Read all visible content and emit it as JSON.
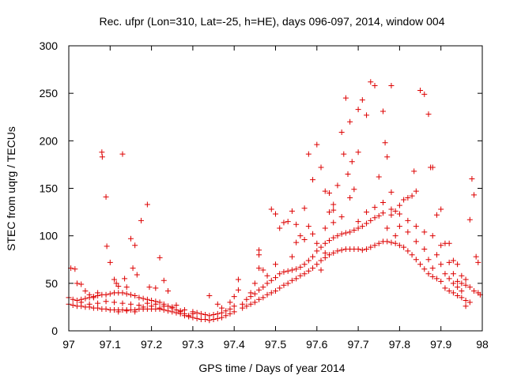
{
  "chart_data": {
    "type": "scatter",
    "title": "Rec. ufpr (Lon=310, Lat=-25, h=HE), days 096-097, 2014, window 004",
    "xlabel": "GPS time / Days of year 2014",
    "ylabel": "STEC from uqrg / TECUs",
    "xlim": [
      97.0,
      98.0
    ],
    "ylim": [
      0,
      300
    ],
    "xticks": [
      97.0,
      97.1,
      97.2,
      97.3,
      97.4,
      97.5,
      97.6,
      97.7,
      97.8,
      97.9,
      98.0
    ],
    "xtick_labels": [
      "97",
      "97.1",
      "97.2",
      "97.3",
      "97.4",
      "97.5",
      "97.6",
      "97.7",
      "97.8",
      "97.9",
      "98"
    ],
    "yticks": [
      0,
      50,
      100,
      150,
      200,
      250,
      300
    ],
    "ytick_labels": [
      "0",
      "50",
      "100",
      "150",
      "200",
      "250",
      "300"
    ],
    "grid": false,
    "marker": "+",
    "color": "#dd0000",
    "points": [
      [
        97.005,
        66
      ],
      [
        97.015,
        65
      ],
      [
        97.02,
        50
      ],
      [
        97.03,
        49
      ],
      [
        97.04,
        42
      ],
      [
        97.05,
        38
      ],
      [
        97.06,
        35
      ],
      [
        97.07,
        40
      ],
      [
        97.08,
        188
      ],
      [
        97.081,
        183
      ],
      [
        97.09,
        141
      ],
      [
        97.092,
        89
      ],
      [
        97.1,
        72
      ],
      [
        97.11,
        54
      ],
      [
        97.115,
        50
      ],
      [
        97.12,
        47
      ],
      [
        97.13,
        186
      ],
      [
        97.135,
        55
      ],
      [
        97.14,
        46
      ],
      [
        97.15,
        97
      ],
      [
        97.155,
        66
      ],
      [
        97.16,
        90
      ],
      [
        97.165,
        59
      ],
      [
        97.175,
        116
      ],
      [
        97.19,
        133
      ],
      [
        97.195,
        46
      ],
      [
        97.21,
        45
      ],
      [
        97.22,
        77
      ],
      [
        97.23,
        53
      ],
      [
        97.24,
        42
      ],
      [
        97.0,
        35
      ],
      [
        97.01,
        33
      ],
      [
        97.02,
        32
      ],
      [
        97.03,
        33
      ],
      [
        97.04,
        34
      ],
      [
        97.05,
        35
      ],
      [
        97.06,
        36
      ],
      [
        97.07,
        37
      ],
      [
        97.08,
        38
      ],
      [
        97.09,
        38
      ],
      [
        97.1,
        39
      ],
      [
        97.11,
        40
      ],
      [
        97.12,
        40
      ],
      [
        97.13,
        40
      ],
      [
        97.14,
        39
      ],
      [
        97.15,
        38
      ],
      [
        97.16,
        37
      ],
      [
        97.17,
        35
      ],
      [
        97.18,
        34
      ],
      [
        97.19,
        33
      ],
      [
        97.2,
        32
      ],
      [
        97.21,
        31
      ],
      [
        97.22,
        30
      ],
      [
        97.23,
        28
      ],
      [
        97.24,
        26
      ],
      [
        97.25,
        25
      ],
      [
        97.26,
        22
      ],
      [
        97.27,
        20
      ],
      [
        97.28,
        18
      ],
      [
        97.29,
        16
      ],
      [
        97.0,
        28
      ],
      [
        97.01,
        27
      ],
      [
        97.02,
        26
      ],
      [
        97.03,
        26
      ],
      [
        97.04,
        25
      ],
      [
        97.05,
        25
      ],
      [
        97.06,
        24
      ],
      [
        97.07,
        24
      ],
      [
        97.08,
        23
      ],
      [
        97.09,
        23
      ],
      [
        97.1,
        22
      ],
      [
        97.11,
        22
      ],
      [
        97.12,
        22
      ],
      [
        97.13,
        22
      ],
      [
        97.14,
        22
      ],
      [
        97.15,
        22
      ],
      [
        97.16,
        22
      ],
      [
        97.17,
        23
      ],
      [
        97.18,
        23
      ],
      [
        97.19,
        23
      ],
      [
        97.2,
        23
      ],
      [
        97.21,
        23
      ],
      [
        97.22,
        23
      ],
      [
        97.23,
        22
      ],
      [
        97.24,
        21
      ],
      [
        97.25,
        20
      ],
      [
        97.26,
        19
      ],
      [
        97.27,
        18
      ],
      [
        97.28,
        16
      ],
      [
        97.29,
        15
      ],
      [
        97.03,
        30
      ],
      [
        97.05,
        28
      ],
      [
        97.07,
        29
      ],
      [
        97.09,
        31
      ],
      [
        97.11,
        30
      ],
      [
        97.13,
        29
      ],
      [
        97.15,
        28
      ],
      [
        97.17,
        27
      ],
      [
        97.19,
        29
      ],
      [
        97.21,
        28
      ],
      [
        97.23,
        26
      ],
      [
        97.25,
        24
      ],
      [
        97.27,
        21
      ],
      [
        97.12,
        20
      ],
      [
        97.14,
        21
      ],
      [
        97.16,
        20
      ],
      [
        97.18,
        25
      ],
      [
        97.2,
        26
      ],
      [
        97.22,
        24
      ],
      [
        97.26,
        27
      ],
      [
        97.28,
        22
      ],
      [
        97.3,
        18
      ],
      [
        97.3,
        14
      ],
      [
        97.31,
        13
      ],
      [
        97.32,
        12
      ],
      [
        97.33,
        12
      ],
      [
        97.34,
        11
      ],
      [
        97.35,
        12
      ],
      [
        97.36,
        13
      ],
      [
        97.37,
        14
      ],
      [
        97.38,
        16
      ],
      [
        97.39,
        18
      ],
      [
        97.4,
        20
      ],
      [
        97.3,
        20
      ],
      [
        97.31,
        19
      ],
      [
        97.32,
        18
      ],
      [
        97.33,
        17
      ],
      [
        97.34,
        16
      ],
      [
        97.35,
        17
      ],
      [
        97.36,
        18
      ],
      [
        97.37,
        19
      ],
      [
        97.38,
        21
      ],
      [
        97.39,
        23
      ],
      [
        97.4,
        26
      ],
      [
        97.34,
        37
      ],
      [
        97.36,
        28
      ],
      [
        97.37,
        24
      ],
      [
        97.39,
        30
      ],
      [
        97.4,
        36
      ],
      [
        97.41,
        43
      ],
      [
        97.41,
        54
      ],
      [
        97.42,
        28
      ],
      [
        97.42,
        24
      ],
      [
        97.43,
        26
      ],
      [
        97.44,
        28
      ],
      [
        97.45,
        30
      ],
      [
        97.46,
        33
      ],
      [
        97.47,
        35
      ],
      [
        97.48,
        38
      ],
      [
        97.49,
        40
      ],
      [
        97.5,
        42
      ],
      [
        97.43,
        33
      ],
      [
        97.44,
        36
      ],
      [
        97.45,
        39
      ],
      [
        97.46,
        43
      ],
      [
        97.47,
        46
      ],
      [
        97.48,
        50
      ],
      [
        97.49,
        53
      ],
      [
        97.5,
        56
      ],
      [
        97.44,
        40
      ],
      [
        97.45,
        50
      ],
      [
        97.46,
        66
      ],
      [
        97.46,
        80
      ],
      [
        97.46,
        85
      ],
      [
        97.47,
        64
      ],
      [
        97.48,
        58
      ],
      [
        97.49,
        128
      ],
      [
        97.5,
        123
      ],
      [
        97.5,
        70
      ],
      [
        97.51,
        108
      ],
      [
        97.52,
        114
      ],
      [
        97.53,
        115
      ],
      [
        97.51,
        45
      ],
      [
        97.52,
        48
      ],
      [
        97.53,
        50
      ],
      [
        97.54,
        53
      ],
      [
        97.55,
        55
      ],
      [
        97.56,
        58
      ],
      [
        97.57,
        60
      ],
      [
        97.58,
        63
      ],
      [
        97.59,
        66
      ],
      [
        97.6,
        70
      ],
      [
        97.51,
        60
      ],
      [
        97.52,
        62
      ],
      [
        97.53,
        63
      ],
      [
        97.54,
        64
      ],
      [
        97.55,
        65
      ],
      [
        97.56,
        67
      ],
      [
        97.57,
        70
      ],
      [
        97.58,
        74
      ],
      [
        97.59,
        78
      ],
      [
        97.6,
        84
      ],
      [
        97.54,
        78
      ],
      [
        97.55,
        93
      ],
      [
        97.56,
        100
      ],
      [
        97.57,
        96
      ],
      [
        97.58,
        110
      ],
      [
        97.59,
        102
      ],
      [
        97.6,
        92
      ],
      [
        97.54,
        126
      ],
      [
        97.55,
        112
      ],
      [
        97.57,
        129
      ],
      [
        97.58,
        186
      ],
      [
        97.59,
        159
      ],
      [
        97.6,
        196
      ],
      [
        97.61,
        172
      ],
      [
        97.62,
        147
      ],
      [
        97.62,
        108
      ],
      [
        97.63,
        145
      ],
      [
        97.63,
        125
      ],
      [
        97.64,
        133
      ],
      [
        97.64,
        127
      ],
      [
        97.65,
        153
      ],
      [
        97.66,
        209
      ],
      [
        97.665,
        186
      ],
      [
        97.67,
        245
      ],
      [
        97.675,
        165
      ],
      [
        97.68,
        220
      ],
      [
        97.685,
        178
      ],
      [
        97.69,
        149
      ],
      [
        97.7,
        188
      ],
      [
        97.7,
        233
      ],
      [
        97.71,
        243
      ],
      [
        97.72,
        227
      ],
      [
        97.73,
        262
      ],
      [
        97.74,
        258
      ],
      [
        97.75,
        162
      ],
      [
        97.76,
        231
      ],
      [
        97.765,
        198
      ],
      [
        97.77,
        183
      ],
      [
        97.78,
        258
      ],
      [
        97.78,
        146
      ],
      [
        97.61,
        74
      ],
      [
        97.62,
        77
      ],
      [
        97.63,
        80
      ],
      [
        97.64,
        82
      ],
      [
        97.65,
        84
      ],
      [
        97.66,
        85
      ],
      [
        97.67,
        86
      ],
      [
        97.68,
        86
      ],
      [
        97.69,
        86
      ],
      [
        97.7,
        86
      ],
      [
        97.61,
        88
      ],
      [
        97.62,
        92
      ],
      [
        97.63,
        95
      ],
      [
        97.64,
        98
      ],
      [
        97.65,
        100
      ],
      [
        97.66,
        102
      ],
      [
        97.67,
        103
      ],
      [
        97.68,
        104
      ],
      [
        97.69,
        106
      ],
      [
        97.7,
        108
      ],
      [
        97.71,
        110
      ],
      [
        97.72,
        113
      ],
      [
        97.73,
        116
      ],
      [
        97.74,
        119
      ],
      [
        97.75,
        121
      ],
      [
        97.76,
        124
      ],
      [
        97.61,
        64
      ],
      [
        97.62,
        82
      ],
      [
        97.64,
        114
      ],
      [
        97.66,
        120
      ],
      [
        97.68,
        140
      ],
      [
        97.7,
        115
      ],
      [
        97.71,
        85
      ],
      [
        97.72,
        86
      ],
      [
        97.73,
        88
      ],
      [
        97.74,
        90
      ],
      [
        97.75,
        92
      ],
      [
        97.76,
        94
      ],
      [
        97.77,
        94
      ],
      [
        97.78,
        93
      ],
      [
        97.79,
        92
      ],
      [
        97.8,
        90
      ],
      [
        97.81,
        88
      ],
      [
        97.82,
        84
      ],
      [
        97.83,
        80
      ],
      [
        97.84,
        75
      ],
      [
        97.85,
        70
      ],
      [
        97.86,
        65
      ],
      [
        97.87,
        60
      ],
      [
        97.88,
        57
      ],
      [
        97.89,
        55
      ],
      [
        97.9,
        52
      ],
      [
        97.72,
        125
      ],
      [
        97.74,
        130
      ],
      [
        97.76,
        135
      ],
      [
        97.78,
        128
      ],
      [
        97.8,
        123
      ],
      [
        97.82,
        116
      ],
      [
        97.84,
        110
      ],
      [
        97.86,
        104
      ],
      [
        97.78,
        122
      ],
      [
        97.79,
        126
      ],
      [
        97.8,
        132
      ],
      [
        97.81,
        138
      ],
      [
        97.82,
        140
      ],
      [
        97.83,
        142
      ],
      [
        97.84,
        147
      ],
      [
        97.835,
        168
      ],
      [
        97.85,
        253
      ],
      [
        97.86,
        249
      ],
      [
        97.87,
        228
      ],
      [
        97.875,
        172
      ],
      [
        97.88,
        172
      ],
      [
        97.89,
        122
      ],
      [
        97.9,
        128
      ],
      [
        97.91,
        92
      ],
      [
        97.92,
        92
      ],
      [
        97.93,
        74
      ],
      [
        97.94,
        70
      ],
      [
        97.95,
        58
      ],
      [
        97.96,
        54
      ],
      [
        97.97,
        117
      ],
      [
        97.975,
        160
      ],
      [
        97.98,
        143
      ],
      [
        97.985,
        78
      ],
      [
        97.99,
        72
      ],
      [
        97.99,
        40
      ],
      [
        97.995,
        38
      ],
      [
        97.88,
        100
      ],
      [
        97.9,
        90
      ],
      [
        97.91,
        45
      ],
      [
        97.92,
        42
      ],
      [
        97.93,
        40
      ],
      [
        97.94,
        37
      ],
      [
        97.95,
        35
      ],
      [
        97.96,
        32
      ],
      [
        97.97,
        30
      ],
      [
        97.91,
        60
      ],
      [
        97.92,
        55
      ],
      [
        97.93,
        50
      ],
      [
        97.94,
        46
      ],
      [
        97.95,
        42
      ],
      [
        97.96,
        26
      ],
      [
        97.97,
        46
      ],
      [
        97.98,
        42
      ],
      [
        97.92,
        72
      ],
      [
        97.93,
        60
      ],
      [
        97.94,
        52
      ],
      [
        97.95,
        50
      ],
      [
        97.96,
        48
      ],
      [
        97.88,
        66
      ],
      [
        97.89,
        80
      ],
      [
        97.9,
        70
      ],
      [
        97.86,
        86
      ],
      [
        97.87,
        75
      ],
      [
        97.84,
        94
      ],
      [
        97.82,
        104
      ],
      [
        97.8,
        110
      ],
      [
        97.79,
        100
      ],
      [
        97.77,
        108
      ]
    ]
  }
}
